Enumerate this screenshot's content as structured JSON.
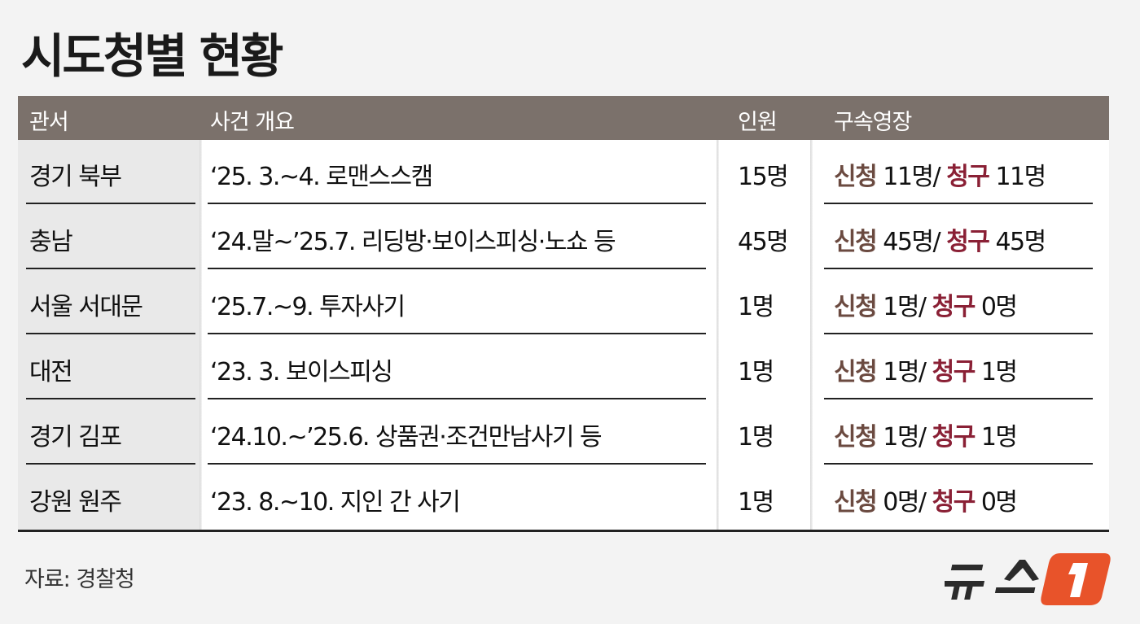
{
  "title": "시도청별 현황",
  "headers": [
    "관서",
    "사건 개요",
    "인원",
    "구속영장"
  ],
  "rows": [
    {
      "office": "경기 북부",
      "summary": "‘25. 3.~4. 로맨스스캠",
      "people": "15명",
      "apply_label": "신청",
      "apply": "11명/",
      "request_label": "청구",
      "request": "11명"
    },
    {
      "office": "충남",
      "summary": "‘24.말~’25.7. 리딩방·보이스피싱·노쇼 등",
      "people": "45명",
      "apply_label": "신청",
      "apply": "45명/",
      "request_label": "청구",
      "request": "45명"
    },
    {
      "office": "서울 서대문",
      "summary": "‘25.7.~9. 투자사기",
      "people": "1명",
      "apply_label": "신청",
      "apply": "1명/",
      "request_label": "청구",
      "request": "0명"
    },
    {
      "office": "대전",
      "summary": "‘23. 3. 보이스피싱",
      "people": "1명",
      "apply_label": "신청",
      "apply": "1명/",
      "request_label": "청구",
      "request": "1명"
    },
    {
      "office": "경기 김포",
      "summary": "‘24.10.~’25.6. 상품권·조건만남사기 등",
      "people": "1명",
      "apply_label": "신청",
      "apply": "1명/",
      "request_label": "청구",
      "request": "1명"
    },
    {
      "office": "강원 원주",
      "summary": "‘23. 8.~10. 지인 간 사기",
      "people": "1명",
      "apply_label": "신청",
      "apply": "0명/",
      "request_label": "청구",
      "request": "0명"
    }
  ],
  "source": "자료: 경찰청",
  "logo": {
    "text": "뉴스1",
    "accent": "#e8532a"
  },
  "colors": {
    "header_bg": "#7b716b",
    "apply": "#6b4a40",
    "request": "#8a2035"
  }
}
